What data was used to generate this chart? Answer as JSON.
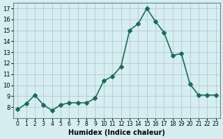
{
  "x": [
    0,
    1,
    2,
    3,
    4,
    5,
    6,
    7,
    8,
    9,
    10,
    11,
    12,
    13,
    14,
    15,
    16,
    17,
    18,
    19,
    20,
    21,
    22,
    23
  ],
  "y": [
    7.8,
    8.3,
    9.1,
    8.2,
    7.7,
    8.2,
    8.4,
    8.4,
    8.4,
    8.8,
    10.4,
    10.8,
    11.7,
    15.0,
    15.6,
    17.0,
    15.8,
    14.8,
    12.7,
    12.9,
    10.1,
    9.1,
    9.1,
    9.1
  ],
  "xlabel": "Humidex (Indice chaleur)",
  "ylim": [
    7,
    17.5
  ],
  "xlim": [
    -0.5,
    23.5
  ],
  "yticks": [
    8,
    9,
    10,
    11,
    12,
    13,
    14,
    15,
    16,
    17
  ],
  "xtick_labels": [
    "0",
    "1",
    "2",
    "3",
    "4",
    "5",
    "6",
    "7",
    "8",
    "9",
    "10",
    "11",
    "12",
    "13",
    "14",
    "15",
    "16",
    "17",
    "18",
    "19",
    "20",
    "21",
    "22",
    "23"
  ],
  "line_color": "#1a6b5a",
  "marker": "D",
  "marker_size": 3,
  "bg_color": "#d6eef2",
  "grid_color": "#b0c8d0",
  "title": ""
}
